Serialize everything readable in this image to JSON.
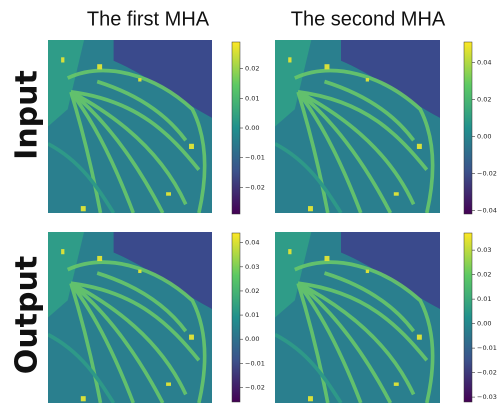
{
  "figure": {
    "column_titles": [
      "The first MHA",
      "The second MHA"
    ],
    "row_labels": [
      "Input",
      "Output"
    ],
    "panels": [
      {
        "ylim": [
          -0.029,
          0.029
        ],
        "yticks": [
          {
            "value": -0.02,
            "label": "−0.02"
          },
          {
            "value": -0.01,
            "label": "−0.01"
          },
          {
            "value": 0,
            "label": "0.00"
          },
          0.01,
          0.02
        ]
      },
      {
        "ylim": [
          -0.042,
          0.051
        ],
        "yticks": [
          {
            "value": -0.04,
            "label": "−0.04"
          },
          {
            "value": -0.02,
            "label": "−0.02"
          },
          {
            "value": 0,
            "label": "0.00"
          },
          0.02,
          0.04
        ]
      },
      {
        "ylim": [
          -0.026,
          0.044
        ],
        "yticks": [
          {
            "value": -0.02,
            "label": "−0.02"
          },
          {
            "value": -0.01,
            "label": "−0.01"
          },
          {
            "value": 0,
            "label": "0.00"
          },
          0.01,
          0.02,
          0.03,
          0.04
        ]
      },
      {
        "ylim": [
          -0.032,
          0.037
        ],
        "yticks": [
          {
            "value": -0.03,
            "label": "−0.03"
          },
          {
            "value": -0.02,
            "label": "−0.02"
          },
          {
            "value": -0.01,
            "label": "−0.01"
          },
          {
            "value": 0,
            "label": "0.00"
          },
          0.01,
          0.02,
          0.03
        ]
      }
    ]
  }
}
